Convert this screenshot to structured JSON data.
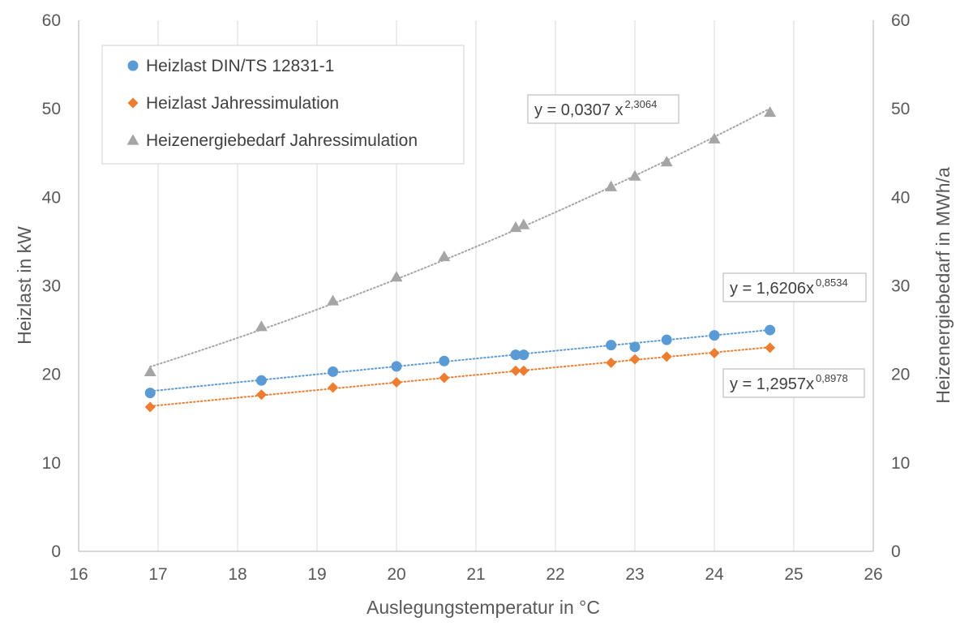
{
  "chart_data": {
    "type": "scatter",
    "title": "",
    "xlabel": "Auslegungstemperatur  in °C",
    "ylabel": "Heizlast in kW",
    "y2label": "Heizenergiebedarf in MWh/a",
    "xlim": [
      16,
      26
    ],
    "ylim": [
      0,
      60
    ],
    "y2lim": [
      0,
      60
    ],
    "x_ticks": [
      "16",
      "17",
      "18",
      "19",
      "20",
      "21",
      "22",
      "23",
      "24",
      "25",
      "26"
    ],
    "y_ticks": [
      "0",
      "10",
      "20",
      "30",
      "40",
      "50",
      "60"
    ],
    "y2_ticks": [
      "0",
      "10",
      "20",
      "30",
      "40",
      "50",
      "60"
    ],
    "grid": "vertical",
    "legend_position": "top-left",
    "series": [
      {
        "name": "Heizlast DIN/TS 12831-1",
        "marker": "circle",
        "color": "#5B9BD5",
        "axis": "left",
        "trendline": {
          "a": 1.6206,
          "b": 0.8534,
          "label_main": "y = 1,6206x",
          "label_exp": "0,8534"
        },
        "points": [
          [
            16.9,
            17.9
          ],
          [
            18.3,
            19.3
          ],
          [
            19.2,
            20.3
          ],
          [
            20.0,
            20.9
          ],
          [
            20.6,
            21.5
          ],
          [
            21.5,
            22.2
          ],
          [
            21.6,
            22.2
          ],
          [
            22.7,
            23.3
          ],
          [
            23.0,
            23.1
          ],
          [
            23.4,
            23.9
          ],
          [
            24.0,
            24.4
          ],
          [
            24.7,
            25.0
          ]
        ]
      },
      {
        "name": "Heizlast Jahressimulation",
        "marker": "diamond",
        "color": "#ED7D31",
        "axis": "left",
        "trendline": {
          "a": 1.2957,
          "b": 0.8978,
          "label_main": "y = 1,2957x",
          "label_exp": "0,8978"
        },
        "points": [
          [
            16.9,
            16.3
          ],
          [
            18.3,
            17.7
          ],
          [
            19.2,
            18.5
          ],
          [
            20.0,
            19.1
          ],
          [
            20.6,
            19.6
          ],
          [
            21.5,
            20.4
          ],
          [
            21.6,
            20.4
          ],
          [
            22.7,
            21.3
          ],
          [
            23.0,
            21.7
          ],
          [
            23.4,
            22.0
          ],
          [
            24.0,
            22.4
          ],
          [
            24.7,
            23.0
          ]
        ]
      },
      {
        "name": "Heizenergiebedarf Jahressimulation",
        "marker": "triangle",
        "color": "#A5A5A5",
        "axis": "right",
        "trendline": {
          "a": 0.0307,
          "b": 2.3064,
          "label_main": "y = 0,0307 x",
          "label_exp": "2,3064"
        },
        "points": [
          [
            16.9,
            20.3
          ],
          [
            18.3,
            25.4
          ],
          [
            19.2,
            28.3
          ],
          [
            20.0,
            31.0
          ],
          [
            20.6,
            33.3
          ],
          [
            21.5,
            36.6
          ],
          [
            21.6,
            36.9
          ],
          [
            22.7,
            41.2
          ],
          [
            23.0,
            42.4
          ],
          [
            23.4,
            44.0
          ],
          [
            24.0,
            46.6
          ],
          [
            24.7,
            49.6
          ]
        ]
      }
    ]
  }
}
